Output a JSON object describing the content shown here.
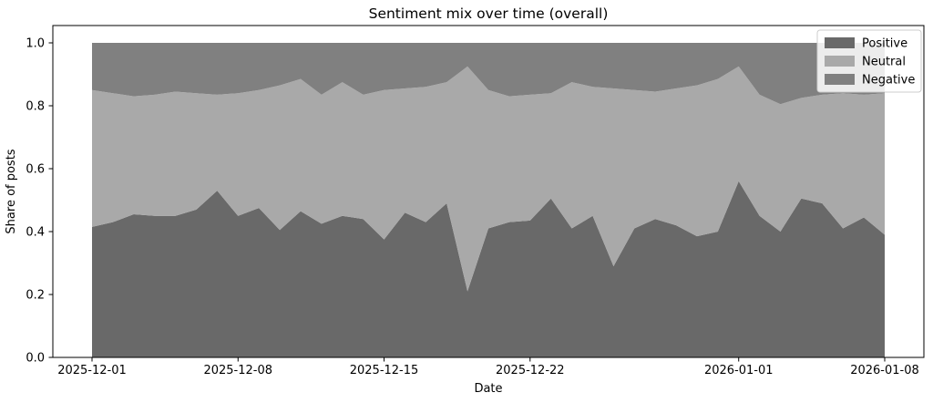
{
  "figure": {
    "title": "Sentiment mix over time (overall)",
    "xlabel": "Date",
    "ylabel": "Share of posts",
    "background_color": "#ffffff",
    "frame_color": "#000000"
  },
  "chart_data": {
    "type": "area",
    "stacked": true,
    "normalized_to_one": true,
    "title": "Sentiment mix over time (overall)",
    "xlabel": "Date",
    "ylabel": "Share of posts",
    "grid": false,
    "ylim": [
      0,
      1.05
    ],
    "x": [
      "2025-12-01",
      "2025-12-02",
      "2025-12-03",
      "2025-12-04",
      "2025-12-05",
      "2025-12-06",
      "2025-12-07",
      "2025-12-08",
      "2025-12-09",
      "2025-12-10",
      "2025-12-11",
      "2025-12-12",
      "2025-12-13",
      "2025-12-14",
      "2025-12-15",
      "2025-12-16",
      "2025-12-17",
      "2025-12-18",
      "2025-12-19",
      "2025-12-20",
      "2025-12-21",
      "2025-12-22",
      "2025-12-23",
      "2025-12-24",
      "2025-12-25",
      "2025-12-26",
      "2025-12-27",
      "2025-12-28",
      "2025-12-29",
      "2025-12-30",
      "2025-12-31",
      "2026-01-01",
      "2026-01-02",
      "2026-01-03",
      "2026-01-04",
      "2026-01-05",
      "2026-01-06",
      "2026-01-07",
      "2026-01-08"
    ],
    "series": [
      {
        "name": "Positive",
        "color": "#696969",
        "values": [
          0.415,
          0.43,
          0.455,
          0.45,
          0.45,
          0.47,
          0.53,
          0.45,
          0.475,
          0.405,
          0.465,
          0.425,
          0.45,
          0.44,
          0.375,
          0.46,
          0.43,
          0.49,
          0.21,
          0.41,
          0.43,
          0.435,
          0.505,
          0.41,
          0.45,
          0.29,
          0.41,
          0.44,
          0.42,
          0.385,
          0.4,
          0.56,
          0.45,
          0.4,
          0.505,
          0.49,
          0.41,
          0.445,
          0.39
        ]
      },
      {
        "name": "Neutral",
        "color": "#a9a9a9",
        "values": [
          0.435,
          0.41,
          0.375,
          0.385,
          0.395,
          0.37,
          0.305,
          0.39,
          0.375,
          0.46,
          0.42,
          0.41,
          0.425,
          0.395,
          0.475,
          0.395,
          0.43,
          0.385,
          0.715,
          0.44,
          0.4,
          0.4,
          0.335,
          0.465,
          0.41,
          0.565,
          0.44,
          0.405,
          0.435,
          0.48,
          0.485,
          0.365,
          0.385,
          0.405,
          0.32,
          0.345,
          0.43,
          0.39,
          0.45
        ]
      },
      {
        "name": "Negative",
        "color": "#808080",
        "values": [
          0.15,
          0.16,
          0.17,
          0.165,
          0.155,
          0.16,
          0.165,
          0.16,
          0.15,
          0.135,
          0.115,
          0.165,
          0.125,
          0.165,
          0.15,
          0.145,
          0.14,
          0.125,
          0.075,
          0.15,
          0.17,
          0.165,
          0.16,
          0.125,
          0.14,
          0.145,
          0.15,
          0.155,
          0.145,
          0.135,
          0.115,
          0.075,
          0.165,
          0.195,
          0.175,
          0.165,
          0.16,
          0.165,
          0.16
        ]
      }
    ],
    "xticks": {
      "day_index": [
        0,
        7,
        14,
        21,
        31,
        38
      ],
      "labels": [
        "2025-12-01",
        "2025-12-08",
        "2025-12-15",
        "2025-12-22",
        "2026-01-01",
        "2026-01-08"
      ]
    },
    "yticks": {
      "values": [
        0.0,
        0.2,
        0.4,
        0.6,
        0.8,
        1.0
      ],
      "labels": [
        "0.0",
        "0.2",
        "0.4",
        "0.6",
        "0.8",
        "1.0"
      ]
    },
    "legend": {
      "position": "upper right",
      "entries": [
        "Positive",
        "Neutral",
        "Negative"
      ]
    }
  }
}
